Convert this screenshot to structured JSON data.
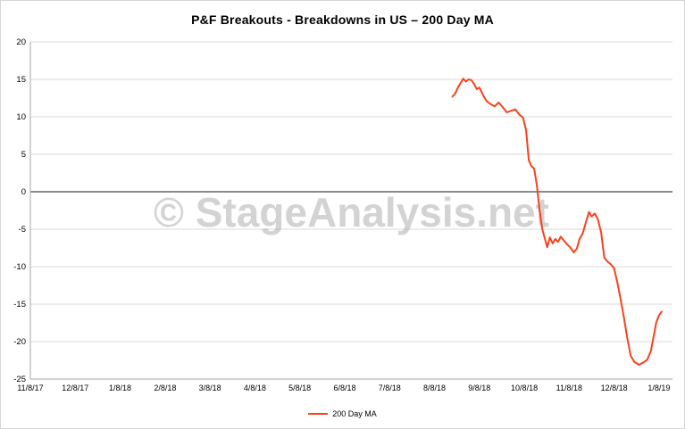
{
  "chart_data": {
    "type": "line",
    "title": "P&F Breakouts - Breakdowns in US – 200 Day MA",
    "xlabel": "",
    "ylabel": "",
    "x_tick_labels": [
      "11/8/17",
      "12/8/17",
      "1/8/18",
      "2/8/18",
      "3/8/18",
      "4/8/18",
      "5/8/18",
      "6/8/18",
      "7/8/18",
      "8/8/18",
      "9/8/18",
      "10/8/18",
      "11/8/18",
      "12/8/18",
      "1/8/19"
    ],
    "y_ticks": [
      20,
      15,
      10,
      5,
      0,
      -5,
      -10,
      -15,
      -20,
      -25
    ],
    "ylim": [
      -25,
      20
    ],
    "xlim_months": [
      0,
      14.3
    ],
    "grid": true,
    "legend_position": "bottom",
    "watermark": "© StageAnalysis.net",
    "series": [
      {
        "name": "200 Day MA",
        "color": "#f8411c",
        "points": [
          [
            9.4,
            12.7
          ],
          [
            9.46,
            13.1
          ],
          [
            9.52,
            13.9
          ],
          [
            9.58,
            14.5
          ],
          [
            9.64,
            15.1
          ],
          [
            9.7,
            14.7
          ],
          [
            9.76,
            15.0
          ],
          [
            9.82,
            14.9
          ],
          [
            9.88,
            14.4
          ],
          [
            9.94,
            13.7
          ],
          [
            10.0,
            13.9
          ],
          [
            10.08,
            12.9
          ],
          [
            10.16,
            12.1
          ],
          [
            10.25,
            11.7
          ],
          [
            10.34,
            11.4
          ],
          [
            10.43,
            11.9
          ],
          [
            10.52,
            11.3
          ],
          [
            10.61,
            10.6
          ],
          [
            10.7,
            10.8
          ],
          [
            10.8,
            11.0
          ],
          [
            10.89,
            10.3
          ],
          [
            10.97,
            9.9
          ],
          [
            11.04,
            8.2
          ],
          [
            11.1,
            4.2
          ],
          [
            11.16,
            3.4
          ],
          [
            11.22,
            3.1
          ],
          [
            11.28,
            0.8
          ],
          [
            11.34,
            -2.5
          ],
          [
            11.4,
            -5.0
          ],
          [
            11.46,
            -6.3
          ],
          [
            11.51,
            -7.4
          ],
          [
            11.57,
            -6.1
          ],
          [
            11.63,
            -6.9
          ],
          [
            11.69,
            -6.3
          ],
          [
            11.75,
            -6.7
          ],
          [
            11.81,
            -6.0
          ],
          [
            11.88,
            -6.5
          ],
          [
            11.95,
            -7.0
          ],
          [
            12.02,
            -7.4
          ],
          [
            12.1,
            -8.1
          ],
          [
            12.17,
            -7.6
          ],
          [
            12.23,
            -6.3
          ],
          [
            12.3,
            -5.6
          ],
          [
            12.37,
            -4.1
          ],
          [
            12.44,
            -2.7
          ],
          [
            12.5,
            -3.3
          ],
          [
            12.57,
            -2.9
          ],
          [
            12.64,
            -3.7
          ],
          [
            12.71,
            -5.4
          ],
          [
            12.78,
            -8.8
          ],
          [
            12.85,
            -9.3
          ],
          [
            12.93,
            -9.7
          ],
          [
            13.0,
            -10.2
          ],
          [
            13.07,
            -12.1
          ],
          [
            13.14,
            -14.2
          ],
          [
            13.21,
            -16.5
          ],
          [
            13.29,
            -19.4
          ],
          [
            13.37,
            -21.9
          ],
          [
            13.45,
            -22.7
          ],
          [
            13.55,
            -23.1
          ],
          [
            13.65,
            -22.8
          ],
          [
            13.74,
            -22.4
          ],
          [
            13.82,
            -21.2
          ],
          [
            13.88,
            -19.3
          ],
          [
            13.94,
            -17.4
          ],
          [
            14.0,
            -16.5
          ],
          [
            14.06,
            -16.0
          ]
        ]
      }
    ]
  },
  "colors": {
    "background": "#ffffff",
    "frame_border": "#d6d6d6",
    "gridline": "#d9d9d9",
    "axis": "#a6a6a6",
    "zero_line": "#1a1a1a",
    "tick_text": "#000000",
    "title_text": "#000000",
    "watermark": "#8c8c8c",
    "series_accent": "#f8411c"
  }
}
